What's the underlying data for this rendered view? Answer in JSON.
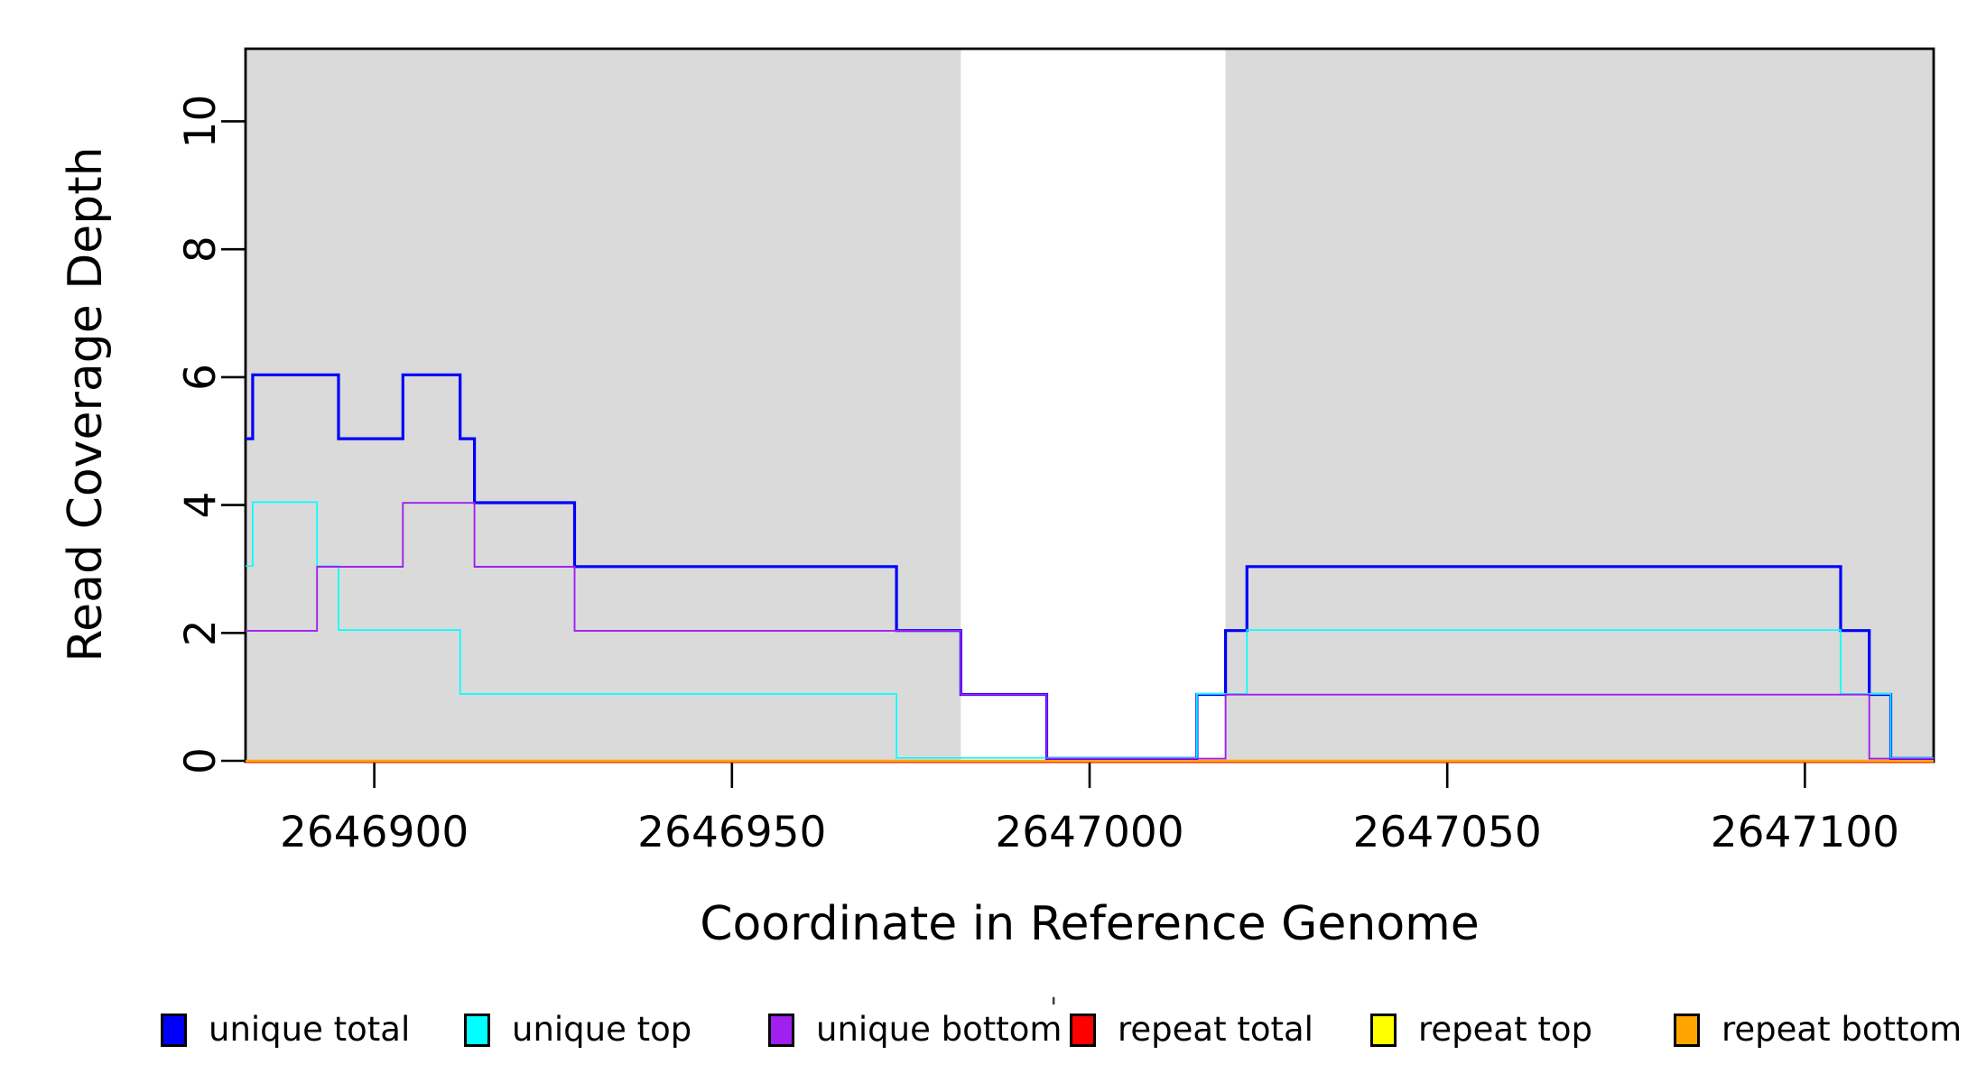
{
  "chart_data": {
    "type": "line",
    "subtype": "step-coverage",
    "xlabel": "Coordinate in Reference Genome",
    "ylabel": "Read Coverage Depth",
    "xlim": [
      2646882,
      2647118
    ],
    "ylim": [
      0,
      11.15
    ],
    "grid": false,
    "x_ticks": [
      2646900,
      2646950,
      2647000,
      2647050,
      2647100
    ],
    "y_ticks": [
      0,
      2,
      4,
      6,
      8,
      10
    ],
    "shaded_regions": [
      {
        "x0": 2646882,
        "x1": 2646982
      },
      {
        "x0": 2647019,
        "x1": 2647118
      }
    ],
    "shaded_region_color": "#DADADA",
    "series": [
      {
        "id": "repeat-total",
        "name": "repeat total",
        "color": "#FF0000",
        "lw": 2.2,
        "dy": 1.3,
        "points": [
          [
            2646882,
            0
          ]
        ]
      },
      {
        "id": "repeat-top",
        "name": "repeat top",
        "color": "#FFFF00",
        "lw": 2.0,
        "dy": 0.4,
        "points": [
          [
            2646882,
            0
          ]
        ]
      },
      {
        "id": "repeat-bottom",
        "name": "repeat bottom",
        "color": "#FFA500",
        "lw": 2.4,
        "dy": 0,
        "points": [
          [
            2646882,
            0
          ]
        ]
      },
      {
        "id": "unique-total",
        "name": "unique total",
        "color": "#0000FA",
        "lw": 3.2,
        "dy": -2.6,
        "points": [
          [
            2646882,
            5
          ],
          [
            2646883,
            6
          ],
          [
            2646895,
            5
          ],
          [
            2646904,
            6
          ],
          [
            2646912,
            5
          ],
          [
            2646914,
            4
          ],
          [
            2646928,
            3
          ],
          [
            2646973,
            2
          ],
          [
            2646982,
            1
          ],
          [
            2646994,
            0
          ],
          [
            2647015,
            1
          ],
          [
            2647019,
            2
          ],
          [
            2647022,
            3
          ],
          [
            2647105,
            2
          ],
          [
            2647109,
            1
          ],
          [
            2647112,
            0
          ]
        ]
      },
      {
        "id": "unique-top",
        "name": "unique top",
        "color": "#00FFFF",
        "lw": 1.7,
        "dy": -3.2,
        "points": [
          [
            2646882,
            3
          ],
          [
            2646883,
            4
          ],
          [
            2646892,
            3
          ],
          [
            2646895,
            2
          ],
          [
            2646912,
            1
          ],
          [
            2646973,
            0
          ],
          [
            2647015,
            1
          ],
          [
            2647022,
            2
          ],
          [
            2647105,
            1
          ],
          [
            2647112,
            0
          ]
        ]
      },
      {
        "id": "unique-bottom",
        "name": "unique bottom",
        "color": "#A020F0",
        "lw": 1.9,
        "dy": -2.4,
        "points": [
          [
            2646882,
            2
          ],
          [
            2646892,
            3
          ],
          [
            2646904,
            4
          ],
          [
            2646914,
            3
          ],
          [
            2646928,
            2
          ],
          [
            2646982,
            1
          ],
          [
            2646994,
            0
          ],
          [
            2647019,
            1
          ],
          [
            2647109,
            0
          ]
        ]
      }
    ],
    "legend": {
      "position": "bottom",
      "items": [
        {
          "label": "unique total",
          "color": "#0000FA"
        },
        {
          "label": "unique top",
          "color": "#00FFFF"
        },
        {
          "label": "unique bottom",
          "color": "#A020F0"
        },
        {
          "label": "repeat total",
          "color": "#FF0000"
        },
        {
          "label": "repeat top",
          "color": "#FFFF00"
        },
        {
          "label": "repeat bottom",
          "color": "#FFA500"
        }
      ],
      "stray_mark": "'"
    }
  },
  "labels": {
    "x_axis_title": "Coordinate in Reference Genome",
    "y_axis_title": "Read Coverage Depth"
  }
}
